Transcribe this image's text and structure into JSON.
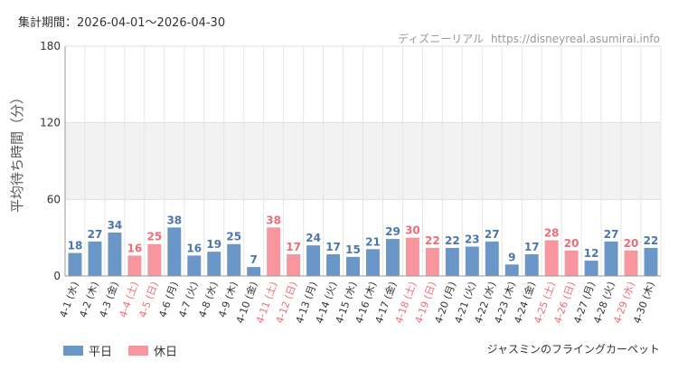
{
  "header": {
    "period": "集計期間：2026-04-01〜2026-04-30",
    "source_name": "ディズニーリアル",
    "source_url": "https://disneyreal.asumirai.info"
  },
  "footer": {
    "attraction": "ジャスミンのフライングカーペット"
  },
  "colors": {
    "weekday": "#6a96c8",
    "holiday": "#f7969e",
    "weekday_text": "#4a76ad",
    "holiday_text": "#ef6b76"
  },
  "chart_data": {
    "type": "bar",
    "ylabel": "平均待ち時間（分）",
    "ylim": [
      0,
      180
    ],
    "yticks": [
      0,
      60,
      120,
      180
    ],
    "grid": true,
    "legend_position": "bottom-left",
    "legend": [
      {
        "name": "平日",
        "key": "weekday"
      },
      {
        "name": "休日",
        "key": "holiday"
      }
    ],
    "categories": [
      "4-1 (水)",
      "4-2 (木)",
      "4-3 (金)",
      "4-4 (土)",
      "4-5 (日)",
      "4-6 (月)",
      "4-7 (火)",
      "4-8 (水)",
      "4-9 (木)",
      "4-10 (金)",
      "4-11 (土)",
      "4-12 (日)",
      "4-13 (月)",
      "4-14 (火)",
      "4-15 (水)",
      "4-16 (木)",
      "4-17 (金)",
      "4-18 (土)",
      "4-19 (日)",
      "4-20 (月)",
      "4-21 (火)",
      "4-22 (水)",
      "4-23 (木)",
      "4-24 (金)",
      "4-25 (土)",
      "4-26 (日)",
      "4-27 (月)",
      "4-28 (火)",
      "4-29 (水)",
      "4-30 (木)"
    ],
    "values": [
      18,
      27,
      34,
      16,
      25,
      38,
      16,
      19,
      25,
      7,
      38,
      17,
      24,
      17,
      15,
      21,
      29,
      30,
      22,
      22,
      23,
      27,
      9,
      17,
      28,
      20,
      12,
      27,
      20,
      22
    ],
    "day_type": [
      "weekday",
      "weekday",
      "weekday",
      "holiday",
      "holiday",
      "weekday",
      "weekday",
      "weekday",
      "weekday",
      "weekday",
      "holiday",
      "holiday",
      "weekday",
      "weekday",
      "weekday",
      "weekday",
      "weekday",
      "holiday",
      "holiday",
      "weekday",
      "weekday",
      "weekday",
      "weekday",
      "weekday",
      "holiday",
      "holiday",
      "weekday",
      "weekday",
      "holiday",
      "weekday"
    ]
  }
}
